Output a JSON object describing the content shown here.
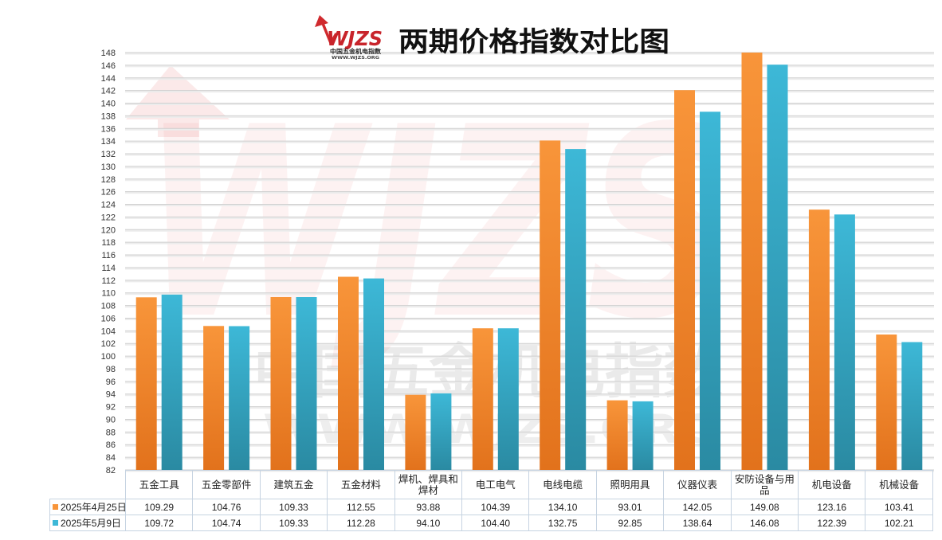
{
  "logo": {
    "mark": "WJZS",
    "name": "中国五金机电指数",
    "url": "WWW.WJZS.ORG"
  },
  "watermark": {
    "mark": "WJZS",
    "name": "中国五金机电指数",
    "url": "WWW.WJZS.ORG"
  },
  "colors": {
    "series1": "#F8953A",
    "series1_dark": "#E2721C",
    "series2": "#3DB8D7",
    "series2_dark": "#2A8AA2",
    "grid": "#cfcfcf",
    "grid_shadow": "#ececec",
    "logo_red": "#D02A2E",
    "watermark_red": "#E04848",
    "watermark_gray": "#7a7a7a"
  },
  "chart_data": {
    "type": "bar",
    "title": "两期价格指数对比图",
    "categories": [
      "五金工具",
      "五金零部件",
      "建筑五金",
      "五金材料",
      "焊机、焊具和焊材",
      "电工电气",
      "电线电缆",
      "照明用具",
      "仪器仪表",
      "安防设备与用品",
      "机电设备",
      "机械设备"
    ],
    "series": [
      {
        "name": "2025年4月25日",
        "values": [
          109.29,
          104.76,
          109.33,
          112.55,
          93.88,
          104.39,
          134.1,
          93.01,
          142.05,
          149.08,
          123.16,
          103.41
        ]
      },
      {
        "name": "2025年5月9日",
        "values": [
          109.72,
          104.74,
          109.33,
          112.28,
          94.1,
          104.4,
          132.75,
          92.85,
          138.64,
          146.08,
          122.39,
          102.21
        ]
      }
    ],
    "ylim": [
      82,
      148
    ],
    "yticks": [
      82,
      84,
      86,
      88,
      90,
      92,
      94,
      96,
      98,
      100,
      102,
      104,
      106,
      108,
      110,
      112,
      114,
      116,
      118,
      120,
      122,
      124,
      126,
      128,
      130,
      132,
      134,
      136,
      138,
      140,
      142,
      144,
      146,
      148
    ],
    "grid": true,
    "legend_position": "bottom data table"
  }
}
